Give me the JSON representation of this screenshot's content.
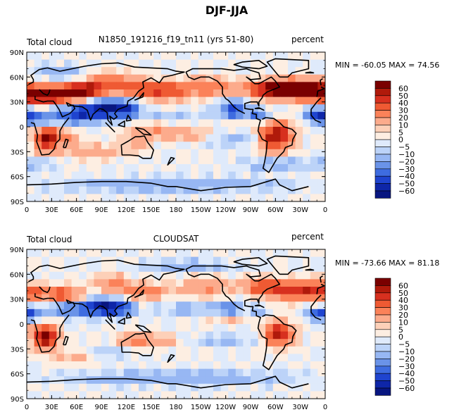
{
  "title": "DJF-JJA",
  "panels": [
    {
      "id": "model",
      "left_label": "Total cloud",
      "center_label": "N1850_191216_f19_tn11 (yrs 51-80)",
      "right_label": "percent",
      "stats": "MIN = -60.05 MAX =  74.56"
    },
    {
      "id": "obs",
      "left_label": "Total cloud",
      "center_label": "CLOUDSAT",
      "right_label": "percent",
      "stats": "MIN = -73.66 MAX =  81.18"
    }
  ],
  "axis": {
    "lat_ticks": [
      "90N",
      "60N",
      "30N",
      "0",
      "30S",
      "60S",
      "90S"
    ],
    "lon_ticks": [
      "0",
      "30E",
      "60E",
      "90E",
      "120E",
      "150E",
      "180",
      "150W",
      "120W",
      "90W",
      "60W",
      "30W",
      "0"
    ]
  },
  "colorbar": {
    "labels": [
      "60",
      "50",
      "40",
      "30",
      "20",
      "10",
      "5",
      "0",
      "−5",
      "−10",
      "−20",
      "−30",
      "−40",
      "−50",
      "−60"
    ],
    "colors": [
      "#7a0000",
      "#b01a0b",
      "#d7301f",
      "#ef5a33",
      "#fb8259",
      "#fcab8c",
      "#fdd0b8",
      "#fdeee2",
      "#dfeafb",
      "#bcd3f8",
      "#97b7f3",
      "#6a93e8",
      "#3e6ce0",
      "#1f44cf",
      "#0e26a8",
      "#081680"
    ]
  },
  "chart_data": {
    "type": "heatmap",
    "title": "DJF-JJA",
    "variable": "Total cloud",
    "units": "percent",
    "x_range": [
      0,
      360
    ],
    "y_range": [
      -90,
      90
    ],
    "contour_levels": [
      -60,
      -50,
      -40,
      -30,
      -20,
      -10,
      -5,
      0,
      5,
      10,
      20,
      30,
      40,
      50,
      60
    ],
    "panels": [
      {
        "name": "N1850_191216_f19_tn11 (yrs 51-80)",
        "min": -60.05,
        "max": 74.56,
        "blobs": [
          {
            "lon": 10,
            "lat": 38,
            "sx": 18,
            "sy": 7,
            "v": 48
          },
          {
            "lon": 45,
            "lat": 40,
            "sx": 22,
            "sy": 8,
            "v": 55
          },
          {
            "lon": 75,
            "lat": 45,
            "sx": 15,
            "sy": 6,
            "v": 42
          },
          {
            "lon": 100,
            "lat": 55,
            "sx": 20,
            "sy": 8,
            "v": 25
          },
          {
            "lon": 140,
            "lat": 45,
            "sx": 25,
            "sy": 8,
            "v": 30
          },
          {
            "lon": 170,
            "lat": 42,
            "sx": 20,
            "sy": 7,
            "v": 25
          },
          {
            "lon": 220,
            "lat": 48,
            "sx": 25,
            "sy": 8,
            "v": 28
          },
          {
            "lon": 290,
            "lat": 45,
            "sx": 18,
            "sy": 7,
            "v": 50
          },
          {
            "lon": 320,
            "lat": 45,
            "sx": 20,
            "sy": 8,
            "v": 55
          },
          {
            "lon": 345,
            "lat": 45,
            "sx": 15,
            "sy": 8,
            "v": 45
          },
          {
            "lon": 25,
            "lat": -15,
            "sx": 10,
            "sy": 10,
            "v": 62
          },
          {
            "lon": 50,
            "lat": -12,
            "sx": 10,
            "sy": 6,
            "v": 20
          },
          {
            "lon": 300,
            "lat": -12,
            "sx": 14,
            "sy": 12,
            "v": 62
          },
          {
            "lon": 135,
            "lat": -18,
            "sx": 12,
            "sy": 6,
            "v": 15
          },
          {
            "lon": 80,
            "lat": -30,
            "sx": 30,
            "sy": 6,
            "v": 18
          },
          {
            "lon": 150,
            "lat": -5,
            "sx": 20,
            "sy": 6,
            "v": 18
          },
          {
            "lon": 200,
            "lat": -10,
            "sx": 25,
            "sy": 5,
            "v": 18
          },
          {
            "lon": 260,
            "lat": 8,
            "sx": 20,
            "sy": 4,
            "v": 15
          },
          {
            "lon": 10,
            "lat": 10,
            "sx": 15,
            "sy": 5,
            "v": -40
          },
          {
            "lon": 60,
            "lat": 15,
            "sx": 20,
            "sy": 8,
            "v": -45
          },
          {
            "lon": 95,
            "lat": 22,
            "sx": 18,
            "sy": 8,
            "v": -50
          },
          {
            "lon": 120,
            "lat": 22,
            "sx": 12,
            "sy": 8,
            "v": -35
          },
          {
            "lon": 250,
            "lat": 20,
            "sx": 12,
            "sy": 8,
            "v": -45
          },
          {
            "lon": 280,
            "lat": 12,
            "sx": 10,
            "sy": 6,
            "v": -35
          },
          {
            "lon": 180,
            "lat": 15,
            "sx": 35,
            "sy": 4,
            "v": -10
          },
          {
            "lon": 250,
            "lat": -15,
            "sx": 30,
            "sy": 6,
            "v": -15
          },
          {
            "lon": 350,
            "lat": 15,
            "sx": 10,
            "sy": 6,
            "v": -40
          },
          {
            "lon": 180,
            "lat": -70,
            "sx": 90,
            "sy": 6,
            "v": -20
          },
          {
            "lon": 300,
            "lat": -45,
            "sx": 30,
            "sy": 5,
            "v": -18
          },
          {
            "lon": 10,
            "lat": -45,
            "sx": 20,
            "sy": 5,
            "v": -12
          },
          {
            "lon": 40,
            "lat": 65,
            "sx": 20,
            "sy": 6,
            "v": -18
          }
        ]
      },
      {
        "name": "CLOUDSAT",
        "min": -73.66,
        "max": 81.18,
        "blobs": [
          {
            "lon": 10,
            "lat": 38,
            "sx": 14,
            "sy": 6,
            "v": 30
          },
          {
            "lon": 45,
            "lat": 35,
            "sx": 15,
            "sy": 7,
            "v": 40
          },
          {
            "lon": 100,
            "lat": 50,
            "sx": 15,
            "sy": 7,
            "v": 20
          },
          {
            "lon": 140,
            "lat": 40,
            "sx": 20,
            "sy": 7,
            "v": 25
          },
          {
            "lon": 215,
            "lat": 45,
            "sx": 20,
            "sy": 8,
            "v": 22
          },
          {
            "lon": 285,
            "lat": 45,
            "sx": 18,
            "sy": 7,
            "v": 38
          },
          {
            "lon": 320,
            "lat": 40,
            "sx": 18,
            "sy": 8,
            "v": 40
          },
          {
            "lon": 345,
            "lat": 42,
            "sx": 12,
            "sy": 8,
            "v": 32
          },
          {
            "lon": 22,
            "lat": -15,
            "sx": 10,
            "sy": 9,
            "v": 72
          },
          {
            "lon": 305,
            "lat": -12,
            "sx": 12,
            "sy": 10,
            "v": 55
          },
          {
            "lon": 130,
            "lat": -20,
            "sx": 12,
            "sy": 6,
            "v": 30
          },
          {
            "lon": 160,
            "lat": -20,
            "sx": 15,
            "sy": 6,
            "v": 15
          },
          {
            "lon": 60,
            "lat": -40,
            "sx": 25,
            "sy": 6,
            "v": 12
          },
          {
            "lon": 250,
            "lat": 8,
            "sx": 25,
            "sy": 4,
            "v": 15
          },
          {
            "lon": 5,
            "lat": 12,
            "sx": 10,
            "sy": 5,
            "v": -38
          },
          {
            "lon": 50,
            "lat": 18,
            "sx": 15,
            "sy": 6,
            "v": -40
          },
          {
            "lon": 90,
            "lat": 20,
            "sx": 15,
            "sy": 7,
            "v": -60
          },
          {
            "lon": 115,
            "lat": 18,
            "sx": 10,
            "sy": 6,
            "v": -40
          },
          {
            "lon": 195,
            "lat": 18,
            "sx": 25,
            "sy": 5,
            "v": -15
          },
          {
            "lon": 245,
            "lat": 18,
            "sx": 12,
            "sy": 6,
            "v": -30
          },
          {
            "lon": 280,
            "lat": 12,
            "sx": 8,
            "sy": 5,
            "v": -25
          },
          {
            "lon": 350,
            "lat": 12,
            "sx": 10,
            "sy": 5,
            "v": -30
          },
          {
            "lon": 180,
            "lat": -65,
            "sx": 90,
            "sy": 6,
            "v": -20
          },
          {
            "lon": 100,
            "lat": -35,
            "sx": 20,
            "sy": 6,
            "v": -12
          },
          {
            "lon": 240,
            "lat": -20,
            "sx": 25,
            "sy": 6,
            "v": -12
          },
          {
            "lon": 200,
            "lat": 70,
            "sx": 40,
            "sy": 5,
            "v": -15
          }
        ]
      }
    ]
  },
  "coastlines": [
    [
      [
        -10,
        36
      ],
      [
        -9,
        43
      ],
      [
        -1,
        46
      ],
      [
        -5,
        48
      ],
      [
        2,
        51
      ],
      [
        8,
        54
      ],
      [
        8,
        57
      ],
      [
        5,
        62
      ],
      [
        15,
        69
      ],
      [
        25,
        71
      ],
      [
        40,
        67
      ],
      [
        50,
        69
      ],
      [
        70,
        73
      ],
      [
        90,
        76
      ],
      [
        110,
        77
      ],
      [
        130,
        72
      ],
      [
        150,
        71
      ],
      [
        170,
        70
      ],
      [
        180,
        67
      ],
      [
        190,
        66
      ],
      [
        175,
        62
      ],
      [
        165,
        60
      ],
      [
        160,
        53
      ],
      [
        150,
        59
      ],
      [
        140,
        54
      ],
      [
        141,
        47
      ],
      [
        135,
        43
      ],
      [
        129,
        35
      ],
      [
        122,
        31
      ],
      [
        121,
        25
      ],
      [
        110,
        21
      ],
      [
        106,
        16
      ],
      [
        109,
        12
      ],
      [
        105,
        9
      ],
      [
        100,
        13
      ],
      [
        103,
        2
      ],
      [
        98,
        8
      ],
      [
        97,
        17
      ],
      [
        92,
        21
      ],
      [
        88,
        22
      ],
      [
        80,
        15
      ],
      [
        77,
        8
      ],
      [
        73,
        20
      ],
      [
        67,
        24
      ],
      [
        57,
        25
      ],
      [
        52,
        27
      ],
      [
        48,
        29
      ],
      [
        50,
        25
      ],
      [
        56,
        26
      ],
      [
        58,
        22
      ],
      [
        52,
        16
      ],
      [
        43,
        12
      ],
      [
        39,
        21
      ],
      [
        35,
        27
      ],
      [
        32,
        31
      ],
      [
        25,
        31
      ],
      [
        20,
        30
      ],
      [
        10,
        33
      ],
      [
        10,
        37
      ],
      [
        -5,
        35
      ],
      [
        -10,
        30
      ],
      [
        -17,
        21
      ],
      [
        -17,
        14
      ],
      [
        -12,
        8
      ],
      [
        -5,
        5
      ],
      [
        5,
        5
      ],
      [
        9,
        4
      ],
      [
        13,
        -10
      ],
      [
        12,
        -18
      ],
      [
        18,
        -34
      ],
      [
        27,
        -33
      ],
      [
        33,
        -27
      ],
      [
        35,
        -20
      ],
      [
        40,
        -15
      ],
      [
        40,
        -5
      ],
      [
        44,
        2
      ],
      [
        51,
        11
      ]
    ],
    [
      [
        15,
        45
      ],
      [
        20,
        40
      ],
      [
        25,
        38
      ],
      [
        27,
        41
      ],
      [
        28,
        45
      ]
    ],
    [
      [
        -5,
        50
      ],
      [
        0,
        52
      ],
      [
        -3,
        58
      ],
      [
        -6,
        56
      ],
      [
        -5,
        50
      ]
    ],
    [
      [
        150,
        -38
      ],
      [
        153,
        -28
      ],
      [
        146,
        -19
      ],
      [
        142,
        -11
      ],
      [
        136,
        -12
      ],
      [
        131,
        -12
      ],
      [
        123,
        -17
      ],
      [
        114,
        -22
      ],
      [
        115,
        -34
      ],
      [
        124,
        -34
      ],
      [
        135,
        -35
      ],
      [
        140,
        -38
      ],
      [
        150,
        -38
      ]
    ],
    [
      [
        172,
        -41
      ],
      [
        174,
        -37
      ],
      [
        178,
        -38
      ],
      [
        170,
        -46
      ],
      [
        172,
        -41
      ]
    ],
    [
      [
        95,
        5
      ],
      [
        106,
        -6
      ],
      [
        103,
        -3
      ],
      [
        95,
        5
      ]
    ],
    [
      [
        110,
        2
      ],
      [
        118,
        7
      ],
      [
        118,
        0
      ],
      [
        110,
        2
      ]
    ],
    [
      [
        131,
        -1
      ],
      [
        141,
        -3
      ],
      [
        150,
        -10
      ],
      [
        141,
        -9
      ],
      [
        131,
        -1
      ]
    ],
    [
      [
        130,
        32
      ],
      [
        136,
        35
      ],
      [
        141,
        41
      ],
      [
        140,
        36
      ],
      [
        130,
        32
      ]
    ],
    [
      [
        120,
        7
      ],
      [
        122,
        14
      ],
      [
        126,
        8
      ],
      [
        120,
        7
      ]
    ],
    [
      [
        44,
        -25
      ],
      [
        47,
        -15
      ],
      [
        50,
        -16
      ],
      [
        47,
        -25
      ],
      [
        44,
        -25
      ]
    ],
    [
      [
        -168,
        66
      ],
      [
        -160,
        70
      ],
      [
        -140,
        70
      ],
      [
        -125,
        70
      ],
      [
        -110,
        68
      ],
      [
        -95,
        70
      ],
      [
        -90,
        68
      ],
      [
        -80,
        65
      ],
      [
        -78,
        58
      ],
      [
        -90,
        57
      ],
      [
        -95,
        60
      ],
      [
        -85,
        52
      ],
      [
        -80,
        52
      ],
      [
        -65,
        60
      ],
      [
        -60,
        55
      ],
      [
        -55,
        48
      ],
      [
        -65,
        44
      ],
      [
        -70,
        42
      ],
      [
        -75,
        38
      ],
      [
        -76,
        35
      ],
      [
        -80,
        30
      ],
      [
        -80,
        25
      ],
      [
        -82,
        30
      ],
      [
        -90,
        30
      ],
      [
        -97,
        28
      ],
      [
        -97,
        22
      ],
      [
        -90,
        21
      ],
      [
        -87,
        21
      ],
      [
        -88,
        16
      ],
      [
        -83,
        15
      ],
      [
        -83,
        10
      ],
      [
        -78,
        8
      ],
      [
        -80,
        1
      ],
      [
        -81,
        -5
      ],
      [
        -76,
        -15
      ],
      [
        -70,
        -18
      ],
      [
        -71,
        -30
      ],
      [
        -73,
        -42
      ],
      [
        -75,
        -50
      ],
      [
        -68,
        -55
      ],
      [
        -65,
        -50
      ],
      [
        -58,
        -38
      ],
      [
        -50,
        -30
      ],
      [
        -48,
        -25
      ],
      [
        -40,
        -22
      ],
      [
        -39,
        -15
      ],
      [
        -35,
        -8
      ],
      [
        -40,
        -3
      ],
      [
        -50,
        0
      ],
      [
        -55,
        5
      ],
      [
        -62,
        10
      ],
      [
        -72,
        11
      ],
      [
        -76,
        9
      ]
    ],
    [
      [
        -85,
        22
      ],
      [
        -78,
        22
      ],
      [
        -74,
        20
      ],
      [
        -80,
        23
      ],
      [
        -85,
        22
      ]
    ],
    [
      [
        -97,
        16
      ],
      [
        -105,
        20
      ],
      [
        -110,
        24
      ],
      [
        -115,
        30
      ],
      [
        -117,
        32
      ],
      [
        -120,
        34
      ],
      [
        -124,
        40
      ],
      [
        -124,
        48
      ],
      [
        -130,
        55
      ],
      [
        -140,
        60
      ],
      [
        -150,
        60
      ],
      [
        -158,
        57
      ],
      [
        -165,
        60
      ],
      [
        -168,
        66
      ]
    ],
    [
      [
        -55,
        60
      ],
      [
        -45,
        60
      ],
      [
        -40,
        65
      ],
      [
        -20,
        70
      ],
      [
        -20,
        80
      ],
      [
        -60,
        82
      ],
      [
        -70,
        78
      ],
      [
        -55,
        60
      ]
    ],
    [
      [
        -80,
        70
      ],
      [
        -70,
        73
      ],
      [
        -80,
        80
      ],
      [
        -100,
        78
      ],
      [
        -110,
        75
      ],
      [
        -100,
        72
      ],
      [
        -80,
        70
      ]
    ],
    [
      [
        -24,
        65
      ],
      [
        -14,
        65
      ],
      [
        -18,
        66
      ],
      [
        -24,
        65
      ]
    ],
    [
      [
        -180,
        -72
      ],
      [
        -150,
        -77
      ],
      [
        -120,
        -73
      ],
      [
        -90,
        -72
      ],
      [
        -60,
        -63
      ],
      [
        -55,
        -70
      ],
      [
        -40,
        -77
      ],
      [
        -20,
        -72
      ],
      [
        0,
        -70
      ],
      [
        30,
        -69
      ],
      [
        60,
        -67
      ],
      [
        90,
        -66
      ],
      [
        120,
        -66
      ],
      [
        150,
        -68
      ],
      [
        170,
        -72
      ],
      [
        180,
        -72
      ]
    ]
  ]
}
